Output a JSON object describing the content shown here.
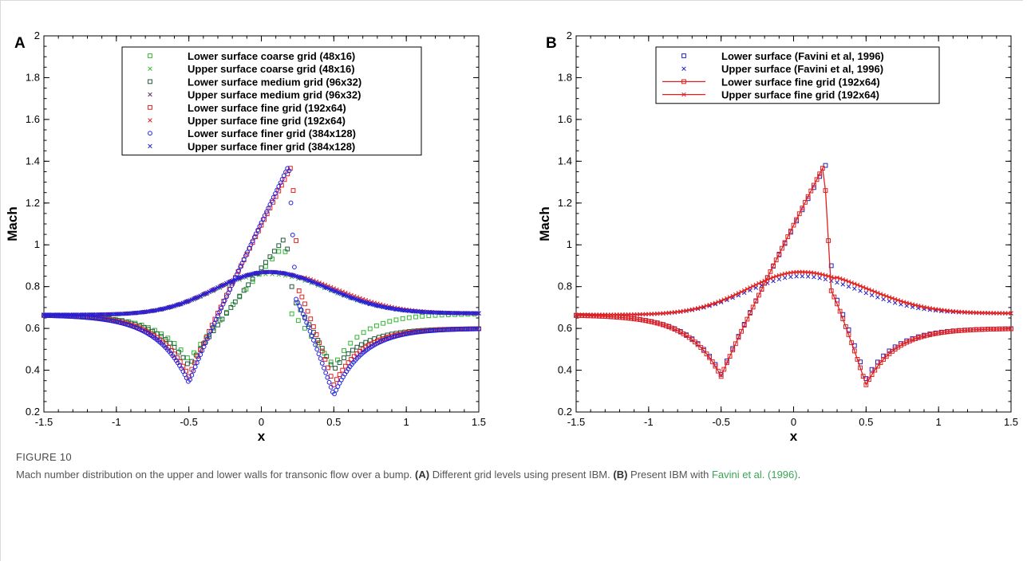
{
  "caption": {
    "label": "FIGURE 10",
    "text": "Mach number distribution on the upper and lower walls for transonic flow over a bump.",
    "a_tag": "(A)",
    "a_text": "Different grid levels using present IBM.",
    "b_tag": "(B)",
    "b_text": "Present IBM with",
    "b_ref": "Favini et al. (1996)",
    "b_end": "."
  },
  "colors": {
    "coarse": "#2fb82f",
    "medium": "#1f5a3a",
    "medium_upper": "#5a2f5a",
    "fine": "#e02020",
    "finer": "#2020e0",
    "favini": "#2020c8"
  },
  "chart_data": [
    {
      "type": "scatter",
      "panel_label": "A",
      "subtitle": "Different grid levels using present IBM",
      "xlabel": "x",
      "ylabel": "Mach",
      "xlim": [
        -1.5,
        1.5
      ],
      "ylim": [
        0.2,
        2
      ],
      "x_ticks": [
        "-1.5",
        "-1",
        "-0.5",
        "0",
        "0.5",
        "1",
        "1.5"
      ],
      "y_ticks": [
        "0.2",
        "0.4",
        "0.6",
        "0.8",
        "1",
        "1.2",
        "1.4",
        "1.6",
        "1.8",
        "2"
      ],
      "legend_position": "top-center",
      "series": [
        {
          "name": "Lower surface coarse grid (48x16)",
          "marker": "square",
          "color_key": "coarse",
          "curve": "lower",
          "grid": "coarse"
        },
        {
          "name": "Upper surface coarse grid (48x16)",
          "marker": "x",
          "color_key": "coarse",
          "curve": "upper",
          "grid": "coarse"
        },
        {
          "name": "Lower surface medium grid (96x32)",
          "marker": "square",
          "color_key": "medium",
          "curve": "lower",
          "grid": "medium"
        },
        {
          "name": "Upper surface medium grid (96x32)",
          "marker": "x",
          "color_key": "medium_upper",
          "curve": "upper",
          "grid": "medium"
        },
        {
          "name": "Lower surface fine grid (192x64)",
          "marker": "square",
          "color_key": "fine",
          "curve": "lower",
          "grid": "fine"
        },
        {
          "name": "Upper surface fine grid (192x64)",
          "marker": "x",
          "color_key": "fine",
          "curve": "upper",
          "grid": "fine"
        },
        {
          "name": "Lower surface finer grid (384x128)",
          "marker": "circle",
          "color_key": "finer",
          "curve": "lower",
          "grid": "finer"
        },
        {
          "name": "Upper surface finer grid (384x128)",
          "marker": "x",
          "color_key": "finer",
          "curve": "upper",
          "grid": "finer"
        }
      ]
    },
    {
      "type": "scatter",
      "panel_label": "B",
      "subtitle": "Present IBM with Favini et al. (1996)",
      "xlabel": "x",
      "ylabel": "Mach",
      "xlim": [
        -1.5,
        1.5
      ],
      "ylim": [
        0.2,
        2
      ],
      "x_ticks": [
        "-1.5",
        "-1",
        "-0.5",
        "0",
        "0.5",
        "1",
        "1.5"
      ],
      "y_ticks": [
        "0.2",
        "0.4",
        "0.6",
        "0.8",
        "1",
        "1.2",
        "1.4",
        "1.6",
        "1.8",
        "2"
      ],
      "legend_position": "top-center",
      "series": [
        {
          "name": "Lower surface (Favini et al, 1996)",
          "marker": "square",
          "color_key": "favini",
          "curve": "lower",
          "grid": "favini"
        },
        {
          "name": "Upper surface (Favini et al, 1996)",
          "marker": "x",
          "color_key": "favini",
          "curve": "upper",
          "grid": "favini"
        },
        {
          "name": "Lower surface fine grid (192x64)",
          "marker": "square-line",
          "color_key": "fine",
          "curve": "lower",
          "grid": "fine"
        },
        {
          "name": "Upper surface fine grid (192x64)",
          "marker": "x-line",
          "color_key": "fine",
          "curve": "upper",
          "grid": "fine"
        }
      ]
    }
  ]
}
